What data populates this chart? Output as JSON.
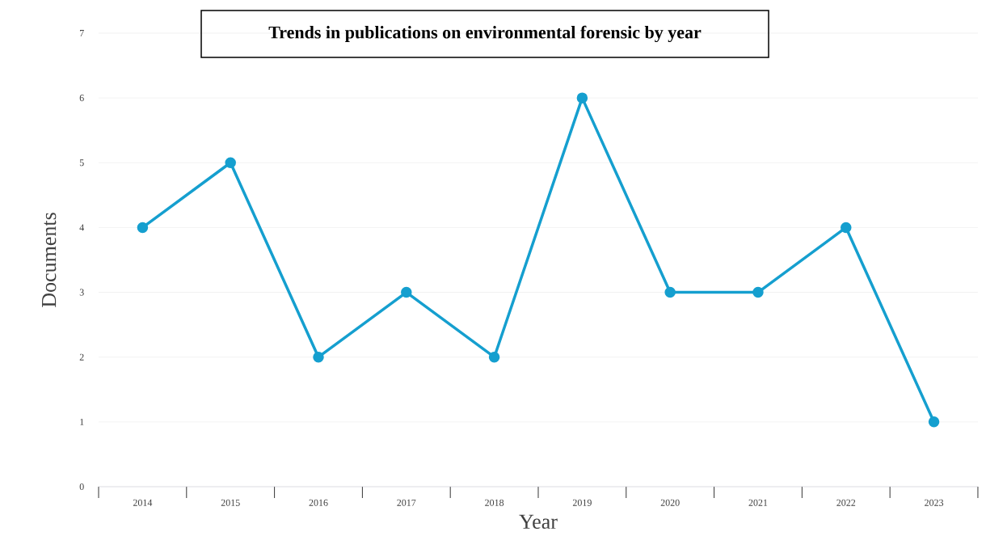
{
  "chart_data": {
    "type": "line",
    "title": "Trends in publications  on environmental  forensic by year",
    "xlabel": "Year",
    "ylabel": "Documents",
    "categories": [
      "2014",
      "2015",
      "2016",
      "2017",
      "2018",
      "2019",
      "2020",
      "2021",
      "2022",
      "2023"
    ],
    "values": [
      4,
      5,
      2,
      3,
      2,
      6,
      3,
      3,
      4,
      1
    ],
    "color": "#159fcf",
    "ylim": [
      0,
      7
    ],
    "yticks": [
      0,
      1,
      2,
      3,
      4,
      5,
      6,
      7
    ],
    "grid": "y",
    "marker": "circle",
    "line_style": "solid"
  }
}
